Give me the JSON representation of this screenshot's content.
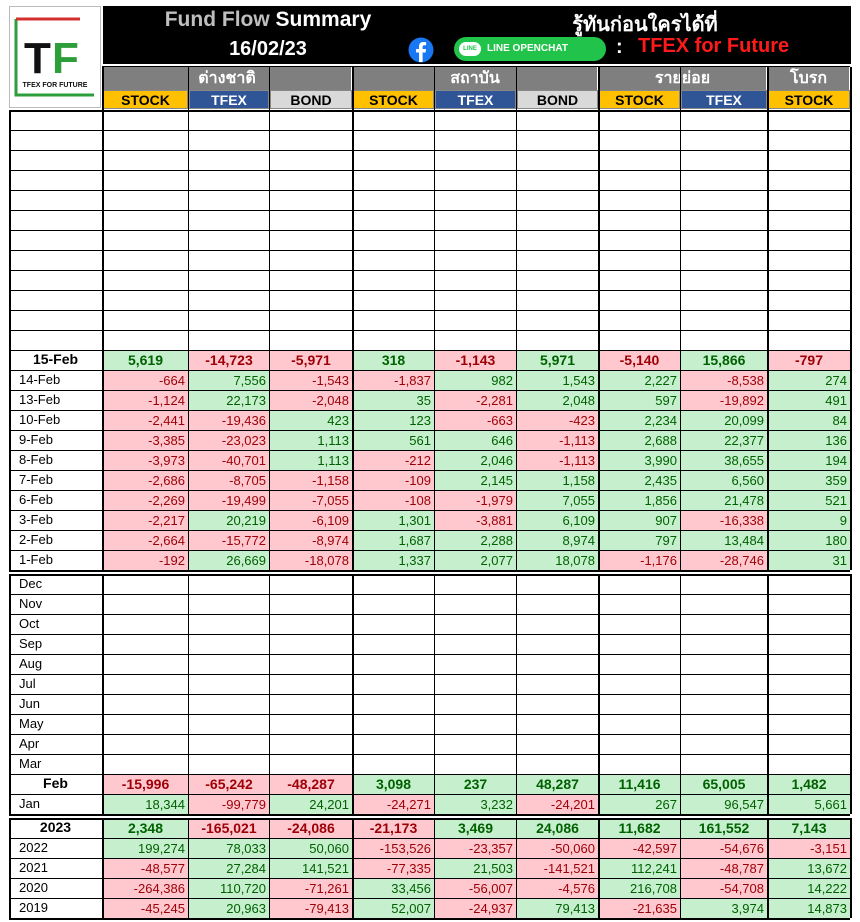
{
  "header": {
    "title_part1": "Fund Flow",
    "title_part2": "Summary",
    "date": "16/02/23",
    "slogan": "รู้ทันก่อนใครได้ที่",
    "line_pill": "LINE",
    "line_label": "LINE OPENCHAT",
    "colon": ":",
    "channel": "TFEX for Future",
    "logo_letters": "TF",
    "logo_caption": "TFEX FOR FUTURE",
    "colors": {
      "red": "#ff1a1a",
      "line_green": "#22c34a",
      "facebook_blue": "#1877f2"
    }
  },
  "groups": [
    {
      "label": "ต่างชาติ",
      "columns": [
        "STOCK",
        "TFEX",
        "BOND"
      ]
    },
    {
      "label": "สถาบัน",
      "columns": [
        "STOCK",
        "TFEX",
        "BOND"
      ]
    },
    {
      "label": "รายย่อย",
      "columns": [
        "STOCK",
        "TFEX"
      ]
    },
    {
      "label": "โบรก",
      "columns": [
        "STOCK"
      ]
    }
  ],
  "daily": {
    "summary": {
      "label": "15-Feb",
      "values": [
        "5,619",
        "-14,723",
        "-5,971",
        "318",
        "-1,143",
        "5,971",
        "-5,140",
        "15,866",
        "-797"
      ]
    },
    "rows": [
      {
        "label": "14-Feb",
        "values": [
          "-664",
          "7,556",
          "-1,543",
          "-1,837",
          "982",
          "1,543",
          "2,227",
          "-8,538",
          "274"
        ]
      },
      {
        "label": "13-Feb",
        "values": [
          "-1,124",
          "22,173",
          "-2,048",
          "35",
          "-2,281",
          "2,048",
          "597",
          "-19,892",
          "491"
        ]
      },
      {
        "label": "10-Feb",
        "values": [
          "-2,441",
          "-19,436",
          "423",
          "123",
          "-663",
          "-423",
          "2,234",
          "20,099",
          "84"
        ]
      },
      {
        "label": "9-Feb",
        "values": [
          "-3,385",
          "-23,023",
          "1,113",
          "561",
          "646",
          "-1,113",
          "2,688",
          "22,377",
          "136"
        ]
      },
      {
        "label": "8-Feb",
        "values": [
          "-3,973",
          "-40,701",
          "1,113",
          "-212",
          "2,046",
          "-1,113",
          "3,990",
          "38,655",
          "194"
        ]
      },
      {
        "label": "7-Feb",
        "values": [
          "-2,686",
          "-8,705",
          "-1,158",
          "-109",
          "2,145",
          "1,158",
          "2,435",
          "6,560",
          "359"
        ]
      },
      {
        "label": "6-Feb",
        "values": [
          "-2,269",
          "-19,499",
          "-7,055",
          "-108",
          "-1,979",
          "7,055",
          "1,856",
          "21,478",
          "521"
        ]
      },
      {
        "label": "3-Feb",
        "values": [
          "-2,217",
          "20,219",
          "-6,109",
          "1,301",
          "-3,881",
          "6,109",
          "907",
          "-16,338",
          "9"
        ]
      },
      {
        "label": "2-Feb",
        "values": [
          "-2,664",
          "-15,772",
          "-8,974",
          "1,687",
          "2,288",
          "8,974",
          "797",
          "13,484",
          "180"
        ]
      },
      {
        "label": "1-Feb",
        "values": [
          "-192",
          "26,669",
          "-18,078",
          "1,337",
          "2,077",
          "18,078",
          "-1,176",
          "-28,746",
          "31"
        ]
      }
    ]
  },
  "monthly": {
    "empty_months": [
      "Dec",
      "Nov",
      "Oct",
      "Sep",
      "Aug",
      "Jul",
      "Jun",
      "May",
      "Apr",
      "Mar"
    ],
    "summary": {
      "label": "Feb",
      "values": [
        "-15,996",
        "-65,242",
        "-48,287",
        "3,098",
        "237",
        "48,287",
        "11,416",
        "65,005",
        "1,482"
      ]
    },
    "rows": [
      {
        "label": "Jan",
        "values": [
          "18,344",
          "-99,779",
          "24,201",
          "-24,271",
          "3,232",
          "-24,201",
          "267",
          "96,547",
          "5,661"
        ]
      }
    ]
  },
  "yearly": {
    "summary": {
      "label": "2023",
      "values": [
        "2,348",
        "-165,021",
        "-24,086",
        "-21,173",
        "3,469",
        "24,086",
        "11,682",
        "161,552",
        "7,143"
      ]
    },
    "rows": [
      {
        "label": "2022",
        "values": [
          "199,274",
          "78,033",
          "50,060",
          "-153,526",
          "-23,357",
          "-50,060",
          "-42,597",
          "-54,676",
          "-3,151"
        ]
      },
      {
        "label": "2021",
        "values": [
          "-48,577",
          "27,284",
          "141,521",
          "-77,335",
          "21,503",
          "-141,521",
          "112,241",
          "-48,787",
          "13,672"
        ]
      },
      {
        "label": "2020",
        "values": [
          "-264,386",
          "110,720",
          "-71,261",
          "33,456",
          "-56,007",
          "-4,576",
          "216,708",
          "-54,708",
          "14,222"
        ]
      },
      {
        "label": "2019",
        "values": [
          "-45,245",
          "20,963",
          "-79,413",
          "52,007",
          "-24,937",
          "79,413",
          "-21,635",
          "3,974",
          "14,873"
        ]
      }
    ]
  }
}
